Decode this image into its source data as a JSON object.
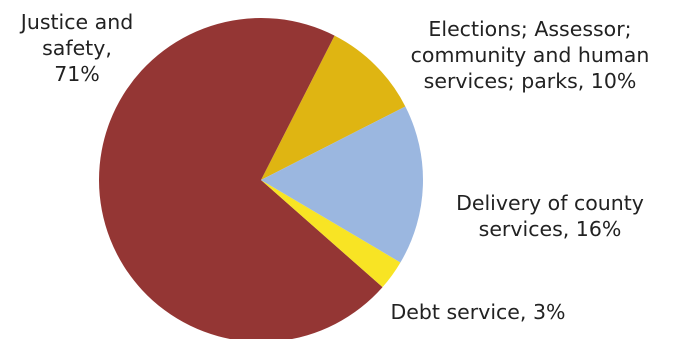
{
  "chart_data": {
    "type": "pie",
    "title": "",
    "start_angle_deg": 27,
    "direction": "counterclockwise",
    "slices": [
      {
        "label_lines": [
          "Elections; Assessor;",
          "community and human",
          "services; parks, 10%"
        ],
        "category": "Elections; Assessor; community and human services; parks",
        "value": 10,
        "color": "#DFB512"
      },
      {
        "label_lines": [
          "Justice and",
          "safety,",
          "71%"
        ],
        "category": "Justice and safety",
        "value": 71,
        "color": "#943634"
      },
      {
        "label_lines": [
          "Debt service, 3%"
        ],
        "category": "Debt service",
        "value": 3,
        "color": "#F8E424"
      },
      {
        "label_lines": [
          "Delivery of county",
          "services, 16%"
        ],
        "category": "Delivery of county services",
        "value": 16,
        "color": "#9BB7E0"
      }
    ]
  }
}
